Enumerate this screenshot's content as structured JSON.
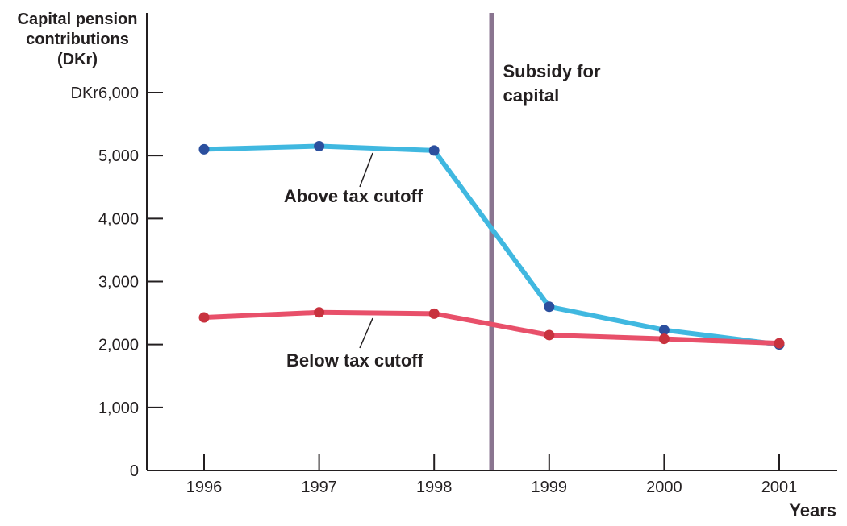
{
  "chart_data": {
    "type": "line",
    "ylabel": [
      "Capital pension",
      "contributions",
      "(DKr)"
    ],
    "xlabel": "Years",
    "ylim": [
      0,
      6000
    ],
    "yticks": [
      0,
      1000,
      2000,
      3000,
      4000,
      5000,
      6000
    ],
    "ytick_labels": [
      "0",
      "1,000",
      "2,000",
      "3,000",
      "4,000",
      "5,000",
      "DKr6,000"
    ],
    "categories": [
      "1996",
      "1997",
      "1998",
      "1999",
      "2000",
      "2001"
    ],
    "series": [
      {
        "name": "Above tax cutoff",
        "values": [
          5100,
          5150,
          5080,
          2600,
          2230,
          2000
        ]
      },
      {
        "name": "Below tax cutoff",
        "values": [
          2430,
          2510,
          2490,
          2150,
          2090,
          2020
        ]
      }
    ],
    "annotation": {
      "text": [
        "Subsidy for",
        "capital"
      ],
      "x": 1998.5
    },
    "colors": {
      "above_line": "#40b8e0",
      "above_marker": "#2b4f9e",
      "below_line": "#e8506a",
      "below_marker": "#c8323e",
      "subsidy_line": "#8a7590",
      "axis": "#231f20"
    },
    "grid": false,
    "legend": "none"
  }
}
